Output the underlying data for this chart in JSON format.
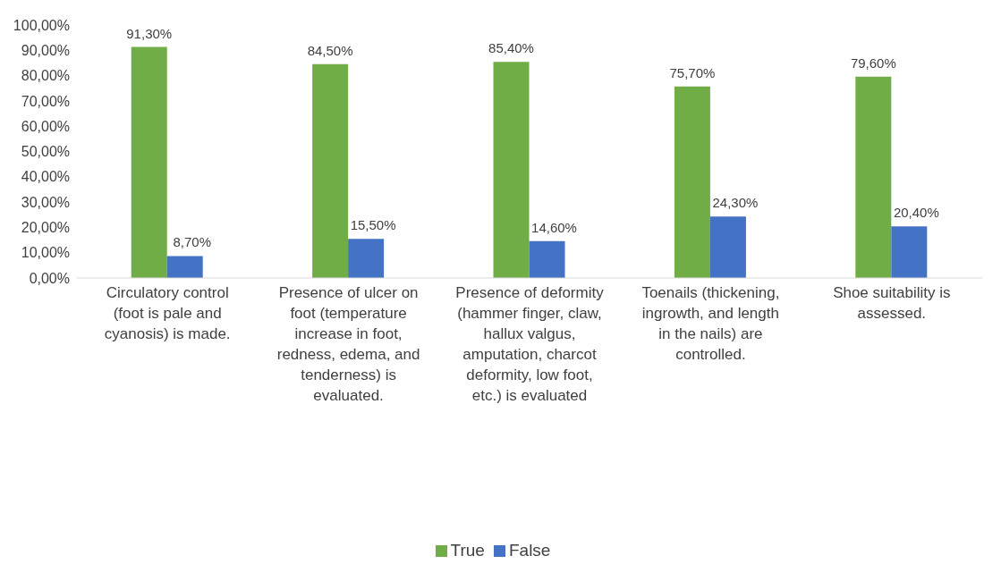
{
  "chart_data": {
    "type": "bar",
    "categories": [
      "Circulatory control (foot is pale and cyanosis) is made.",
      "Presence of ulcer on foot (temperature increase in foot, redness, edema, and tenderness) is evaluated.",
      "Presence of deformity (hammer finger, claw, hallux valgus, amputation, charcot deformity, low foot, etc.) is evaluated",
      "Toenails (thickening, ingrowth, and length in the nails) are controlled.",
      "Shoe suitability is assessed."
    ],
    "series": [
      {
        "name": "True",
        "color": "#70ad47",
        "values": [
          91.3,
          84.5,
          85.4,
          75.7,
          79.6
        ],
        "value_labels": [
          "91,30%",
          "84,50%",
          "85,40%",
          "75,70%",
          "79,60%"
        ]
      },
      {
        "name": "False",
        "color": "#4472c4",
        "values": [
          8.7,
          15.5,
          14.6,
          24.3,
          20.4
        ],
        "value_labels": [
          "8,70%",
          "15,50%",
          "14,60%",
          "24,30%",
          "20,40%"
        ]
      }
    ],
    "ylim": [
      0,
      100
    ],
    "yticks": [
      {
        "value": 0,
        "label": "0,00%"
      },
      {
        "value": 10,
        "label": "10,00%"
      },
      {
        "value": 20,
        "label": "20,00%"
      },
      {
        "value": 30,
        "label": "30,00%"
      },
      {
        "value": 40,
        "label": "40,00%"
      },
      {
        "value": 50,
        "label": "50,00%"
      },
      {
        "value": 60,
        "label": "60,00%"
      },
      {
        "value": 70,
        "label": "70,00%"
      },
      {
        "value": 80,
        "label": "80,00%"
      },
      {
        "value": 90,
        "label": "90,00%"
      },
      {
        "value": 100,
        "label": "100,00%"
      }
    ],
    "grid": false,
    "legend": "bottom"
  }
}
